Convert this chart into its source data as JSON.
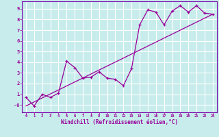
{
  "xlabel": "Windchill (Refroidissement éolien,°C)",
  "background_color": "#c8ecec",
  "grid_color": "#ffffff",
  "line_color": "#990099",
  "spine_color": "#7700aa",
  "xlim": [
    -0.5,
    23.5
  ],
  "ylim": [
    -0.7,
    9.7
  ],
  "xticks": [
    0,
    1,
    2,
    3,
    4,
    5,
    6,
    7,
    8,
    9,
    10,
    11,
    12,
    13,
    14,
    15,
    16,
    17,
    18,
    19,
    20,
    21,
    22,
    23
  ],
  "yticks": [
    0,
    1,
    2,
    3,
    4,
    5,
    6,
    7,
    8,
    9
  ],
  "ytick_labels": [
    "-0",
    "1",
    "2",
    "3",
    "4",
    "5",
    "6",
    "7",
    "8",
    "9"
  ],
  "line1_x": [
    0,
    1,
    2,
    3,
    4,
    5,
    6,
    7,
    8,
    9,
    10,
    11,
    12,
    13,
    14,
    15,
    16,
    17,
    18,
    19,
    20,
    21,
    22,
    23
  ],
  "line1_y": [
    0.7,
    -0.1,
    1.0,
    0.7,
    1.1,
    4.1,
    3.5,
    2.5,
    2.6,
    3.1,
    2.5,
    2.4,
    1.8,
    3.4,
    7.5,
    8.9,
    8.7,
    7.5,
    8.8,
    9.3,
    8.7,
    9.3,
    8.6,
    8.5
  ],
  "line2_x": [
    0,
    23
  ],
  "line2_y": [
    -0.1,
    8.5
  ]
}
